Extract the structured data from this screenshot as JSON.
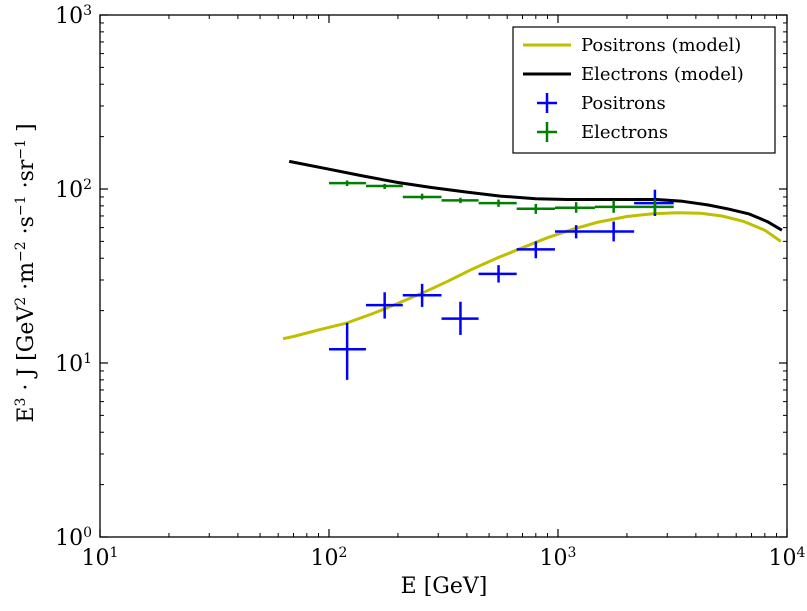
{
  "chart_data": {
    "type": "scatter",
    "x_scale": "log",
    "y_scale": "log",
    "xlim": [
      10,
      10000
    ],
    "ylim": [
      1,
      1000
    ],
    "xlabel": "E [GeV]",
    "ylabel": {
      "lead": "E",
      "exp_e": "3",
      "mid1": " · J [GeV",
      "exp_gev": "2",
      "mid2": " ·m",
      "exp_m": "−2",
      "mid3": " ·s",
      "exp_s": "−1",
      "mid4": " ·sr",
      "exp_sr": "−1",
      "tail": " ]"
    },
    "x_ticks": [
      {
        "base": "10",
        "exp": "1"
      },
      {
        "base": "10",
        "exp": "2"
      },
      {
        "base": "10",
        "exp": "3"
      },
      {
        "base": "10",
        "exp": "4"
      }
    ],
    "y_ticks": [
      {
        "base": "10",
        "exp": "0"
      },
      {
        "base": "10",
        "exp": "1"
      },
      {
        "base": "10",
        "exp": "2"
      },
      {
        "base": "10",
        "exp": "3"
      }
    ],
    "grid": false,
    "legend_position": "top-right",
    "series": [
      {
        "name": "Positrons (model)",
        "kind": "line",
        "color": "#bfbf00",
        "points": [
          [
            63,
            13.8
          ],
          [
            70,
            14.2
          ],
          [
            90,
            15.5
          ],
          [
            120,
            17.0
          ],
          [
            160,
            19.5
          ],
          [
            200,
            22.0
          ],
          [
            260,
            25.5
          ],
          [
            330,
            29.5
          ],
          [
            420,
            34.5
          ],
          [
            540,
            40.0
          ],
          [
            700,
            46.0
          ],
          [
            900,
            52.5
          ],
          [
            1150,
            58.5
          ],
          [
            1500,
            64.5
          ],
          [
            2000,
            69.5
          ],
          [
            2600,
            72.0
          ],
          [
            3300,
            73.0
          ],
          [
            4200,
            72.5
          ],
          [
            5200,
            70.0
          ],
          [
            6500,
            65.0
          ],
          [
            8000,
            58.0
          ],
          [
            9400,
            50.0
          ]
        ]
      },
      {
        "name": "Electrons (model)",
        "kind": "line",
        "color": "#000000",
        "points": [
          [
            67,
            144
          ],
          [
            100,
            130
          ],
          [
            140,
            119
          ],
          [
            200,
            109
          ],
          [
            280,
            102
          ],
          [
            400,
            96
          ],
          [
            560,
            91
          ],
          [
            800,
            88
          ],
          [
            1100,
            87
          ],
          [
            1500,
            87
          ],
          [
            2000,
            87
          ],
          [
            2700,
            87
          ],
          [
            3500,
            85
          ],
          [
            4500,
            81
          ],
          [
            5500,
            77
          ],
          [
            6800,
            72
          ],
          [
            8200,
            65
          ],
          [
            9500,
            58
          ]
        ]
      },
      {
        "name": "Positrons",
        "kind": "errorbar",
        "color": "#0000ff",
        "points": [
          {
            "x": 120,
            "y": 12,
            "xlo": 100,
            "xhi": 145,
            "ylo": 8,
            "yhi": 17
          },
          {
            "x": 175,
            "y": 21.5,
            "xlo": 145,
            "xhi": 210,
            "ylo": 18,
            "yhi": 25.5
          },
          {
            "x": 255,
            "y": 24.5,
            "xlo": 210,
            "xhi": 310,
            "ylo": 21,
            "yhi": 28.5
          },
          {
            "x": 375,
            "y": 18,
            "xlo": 310,
            "xhi": 450,
            "ylo": 14.5,
            "yhi": 22.5
          },
          {
            "x": 550,
            "y": 32.5,
            "xlo": 450,
            "xhi": 660,
            "ylo": 29,
            "yhi": 36.5
          },
          {
            "x": 800,
            "y": 45,
            "xlo": 660,
            "xhi": 970,
            "ylo": 40,
            "yhi": 50
          },
          {
            "x": 1200,
            "y": 57,
            "xlo": 970,
            "xhi": 1450,
            "ylo": 52,
            "yhi": 62
          },
          {
            "x": 1750,
            "y": 57,
            "xlo": 1450,
            "xhi": 2150,
            "ylo": 50,
            "yhi": 65
          },
          {
            "x": 2650,
            "y": 83,
            "xlo": 2150,
            "xhi": 3200,
            "ylo": 70,
            "yhi": 99
          }
        ]
      },
      {
        "name": "Electrons",
        "kind": "errorbar",
        "color": "#007f00",
        "points": [
          {
            "x": 120,
            "y": 108,
            "xlo": 100,
            "xhi": 145,
            "ylo": 104,
            "yhi": 112
          },
          {
            "x": 175,
            "y": 104,
            "xlo": 145,
            "xhi": 210,
            "ylo": 100,
            "yhi": 107
          },
          {
            "x": 255,
            "y": 90,
            "xlo": 210,
            "xhi": 310,
            "ylo": 87,
            "yhi": 94
          },
          {
            "x": 375,
            "y": 86,
            "xlo": 310,
            "xhi": 450,
            "ylo": 83,
            "yhi": 89
          },
          {
            "x": 550,
            "y": 83,
            "xlo": 450,
            "xhi": 660,
            "ylo": 79,
            "yhi": 87
          },
          {
            "x": 800,
            "y": 77,
            "xlo": 660,
            "xhi": 970,
            "ylo": 72,
            "yhi": 82
          },
          {
            "x": 1200,
            "y": 78,
            "xlo": 970,
            "xhi": 1450,
            "ylo": 73,
            "yhi": 84
          },
          {
            "x": 1750,
            "y": 79,
            "xlo": 1450,
            "xhi": 2150,
            "ylo": 73,
            "yhi": 86
          },
          {
            "x": 2650,
            "y": 79,
            "xlo": 2150,
            "xhi": 3200,
            "ylo": 72,
            "yhi": 87
          }
        ]
      }
    ]
  }
}
